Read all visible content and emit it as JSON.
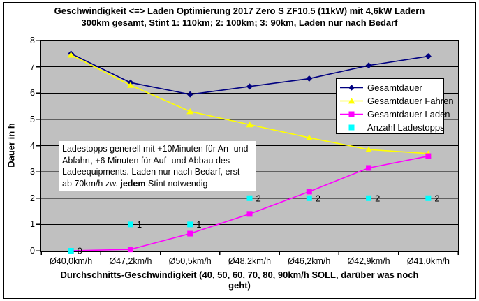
{
  "chart": {
    "title_line1": "Geschwindigkeit <=> Laden Optimierung 2017 Zero S ZF10.5 (11kW) mit 4,6kW Ladern",
    "title_line2": "300km gesamt, Stint 1: 110km; 2: 100km; 3: 90km, Laden nur nach Bedarf",
    "y_axis_title": "Dauer in h",
    "x_axis_title_line1": "Durchschnitts-Geschwindigkeit (40, 50, 60, 70, 80, 90km/h SOLL, darüber was noch",
    "x_axis_title_line2": "geht)",
    "plot_bg": "#C0C0C0",
    "grid_color": "#000000"
  },
  "annotation": {
    "line1": "Ladestopps generell mit +10Minuten für An- und",
    "line2": "Abfahrt, +6 Minuten für Auf- und Abbau des",
    "line3": "Ladeequipments. Laden nur nach Bedarf, erst",
    "line4_pre": "ab 70km/h zw. ",
    "line4_bold": "jedem",
    "line4_post": " Stint notwendig"
  },
  "chart_data": {
    "type": "line",
    "title": "Geschwindigkeit <=> Laden Optimierung 2017 Zero S ZF10.5 (11kW) mit 4,6kW Ladern",
    "subtitle": "300km gesamt, Stint 1: 110km; 2: 100km; 3: 90km, Laden nur nach Bedarf",
    "categories": [
      "Ø40,0km/h",
      "Ø47,2km/h",
      "Ø50,5km/h",
      "Ø48,2km/h",
      "Ø46,2km/h",
      "Ø42,9km/h",
      "Ø41,0km/h"
    ],
    "xlabel": "Durchschnitts-Geschwindigkeit (40, 50, 60, 70, 80, 90km/h SOLL, darüber was noch geht)",
    "ylabel": "Dauer in h",
    "ylim": [
      0,
      8
    ],
    "y_ticks": [
      0,
      1,
      2,
      3,
      4,
      5,
      6,
      7,
      8
    ],
    "grid": "horizontal",
    "legend_position": "inside-right",
    "series": [
      {
        "name": "Gesamtdauer",
        "color": "#000080",
        "marker": "diamond",
        "line": true,
        "values": [
          7.5,
          6.4,
          5.95,
          6.25,
          6.55,
          7.05,
          7.4
        ]
      },
      {
        "name": "Gesamtdauer Fahren",
        "color": "#FFFF00",
        "marker": "triangle",
        "line": true,
        "values": [
          7.45,
          6.3,
          5.3,
          4.8,
          4.3,
          3.85,
          3.7
        ]
      },
      {
        "name": "Gesamtdauer Laden",
        "color": "#FF00FF",
        "marker": "square",
        "line": true,
        "values": [
          0.0,
          0.05,
          0.65,
          1.4,
          2.25,
          3.15,
          3.6
        ]
      },
      {
        "name": "Anzahl Ladestopps",
        "color": "#00FFFF",
        "marker": "square",
        "line": false,
        "values": [
          0,
          1,
          1,
          2,
          2,
          2,
          2
        ],
        "point_labels": [
          "0",
          "1",
          "1",
          "2",
          "2",
          "2",
          "2"
        ]
      }
    ]
  }
}
